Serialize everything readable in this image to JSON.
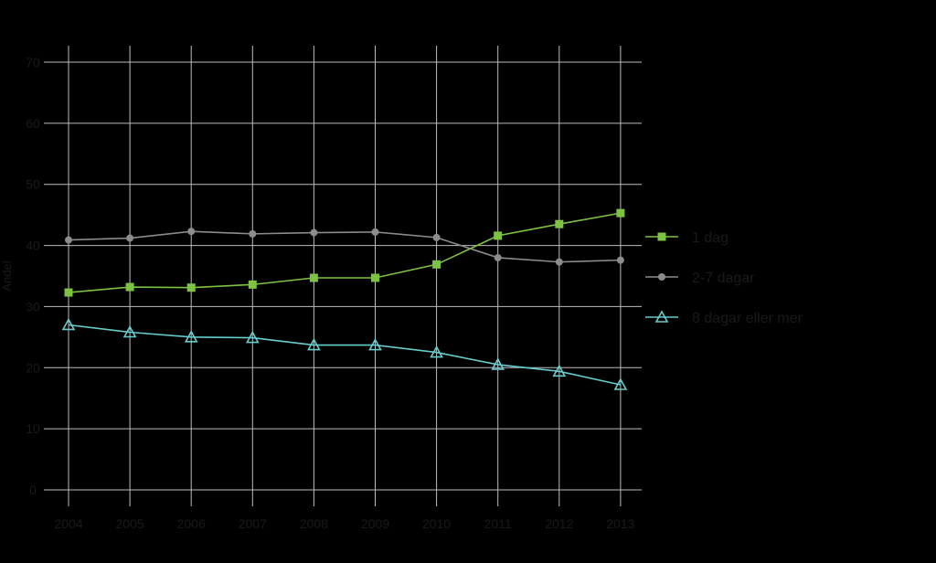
{
  "chart_data": {
    "type": "line",
    "title": "",
    "xlabel": "",
    "ylabel": "Andel",
    "x": [
      "2004",
      "2005",
      "2006",
      "2007",
      "2008",
      "2009",
      "2010",
      "2011",
      "2012",
      "2013"
    ],
    "y_ticks": [
      "0",
      "10",
      "20",
      "30",
      "40",
      "50",
      "60",
      "70"
    ],
    "ylim": [
      0,
      70
    ],
    "grid": true,
    "legend_position": "right",
    "series": [
      {
        "name": "1 dag",
        "color": "#7dc242",
        "marker": "square",
        "values": [
          32.3,
          33.2,
          33.1,
          33.6,
          34.7,
          34.7,
          36.9,
          41.6,
          43.5,
          45.3
        ]
      },
      {
        "name": "2-7 dagar",
        "color": "#8c8c8c",
        "marker": "circle",
        "values": [
          40.9,
          41.2,
          42.3,
          41.9,
          42.1,
          42.2,
          41.3,
          38.0,
          37.3,
          37.6
        ]
      },
      {
        "name": "8 dagar eller mer",
        "color": "#67cccc",
        "marker": "triangle",
        "values": [
          27.0,
          25.8,
          25.0,
          24.9,
          23.7,
          23.7,
          22.5,
          20.5,
          19.4,
          17.2
        ]
      }
    ]
  }
}
